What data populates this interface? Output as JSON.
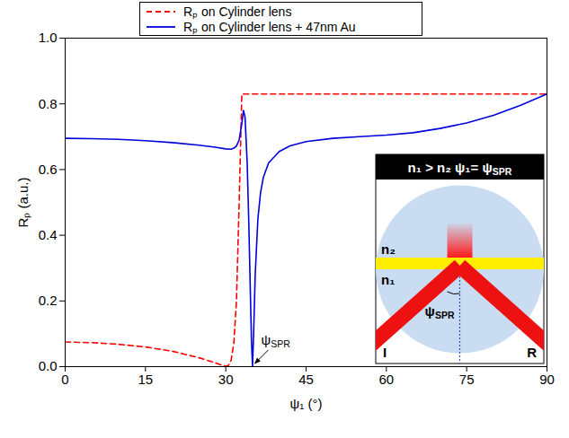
{
  "chart_data": {
    "type": "line",
    "x_label": "ψ₁ (°)",
    "y_label": "Rₚ (a.u.)",
    "xlim": [
      0,
      90
    ],
    "ylim": [
      0,
      1
    ],
    "xticks": [
      0,
      15,
      30,
      45,
      60,
      75,
      90
    ],
    "yticks": [
      {
        "value": 0,
        "label": "0.0"
      },
      {
        "value": 0.2,
        "label": "0.2"
      },
      {
        "value": 0.4,
        "label": "0.4"
      },
      {
        "value": 0.6,
        "label": "0.6"
      },
      {
        "value": 0.8,
        "label": "0.8"
      },
      {
        "value": 1,
        "label": "1.0"
      }
    ],
    "legend": "top",
    "series": [
      {
        "name": "Rₚ on Cylinder lens",
        "color": "#ff0000",
        "line_style": "dashed",
        "x": [
          0,
          5,
          10,
          15,
          20,
          25,
          28,
          29,
          30,
          30.5,
          31,
          31.5,
          32,
          32.5,
          33,
          35,
          45,
          60,
          75,
          90
        ],
        "values": [
          0.075,
          0.073,
          0.068,
          0.06,
          0.047,
          0.027,
          0.012,
          0.006,
          0.001,
          0.004,
          0.02,
          0.07,
          0.2,
          0.5,
          0.83,
          0.83,
          0.83,
          0.83,
          0.83,
          0.83
        ]
      },
      {
        "name": "Rₚ on Cylinder lens + 47nm Au",
        "color": "#0000dd",
        "line_style": "solid",
        "x": [
          0,
          5,
          10,
          15,
          20,
          25,
          28,
          30,
          31,
          31.5,
          32,
          32.5,
          33,
          33.3,
          33.6,
          34,
          34.3,
          34.6,
          34.8,
          35,
          35.2,
          35.5,
          36,
          36.5,
          37,
          38,
          40,
          42,
          45,
          50,
          55,
          60,
          65,
          70,
          75,
          80,
          85,
          90
        ],
        "values": [
          0.695,
          0.694,
          0.692,
          0.688,
          0.682,
          0.674,
          0.668,
          0.663,
          0.662,
          0.665,
          0.672,
          0.69,
          0.74,
          0.78,
          0.76,
          0.62,
          0.44,
          0.22,
          0.08,
          0.0,
          0.1,
          0.28,
          0.45,
          0.53,
          0.575,
          0.62,
          0.655,
          0.672,
          0.685,
          0.695,
          0.7,
          0.705,
          0.712,
          0.725,
          0.742,
          0.765,
          0.795,
          0.83
        ]
      }
    ],
    "annotations": [
      {
        "text": "ψSPR",
        "x": 35,
        "y": 0
      }
    ],
    "inset": {
      "header": "n₁ > n₂  ψ₁= ψSPR",
      "upper_medium": "n₂",
      "lower_medium": "n₁",
      "angle": "ψSPR",
      "incident": "I",
      "reflected": "R"
    }
  }
}
